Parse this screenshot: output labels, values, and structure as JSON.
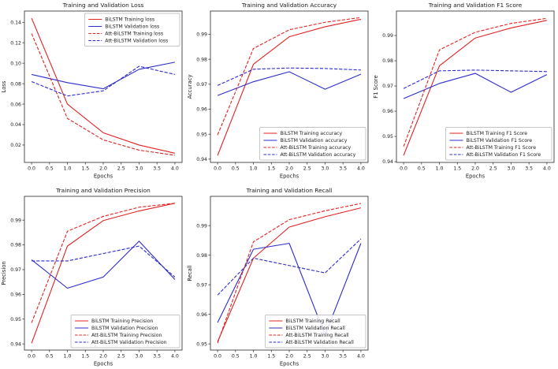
{
  "figure": {
    "background": "#ffffff"
  },
  "colors": {
    "red": "#e02323",
    "blue": "#2c2ccc",
    "axis": "#262626",
    "text": "#1a1a1a",
    "legend_border": "#b3b3b3",
    "legend_bg": "rgba(255,255,255,0.85)"
  },
  "chart_data": [
    {
      "type": "line",
      "title": "Training and Validation Loss",
      "xlabel": "Epochs",
      "ylabel": "Loss",
      "x": [
        0,
        1,
        2,
        3,
        4
      ],
      "xlim": [
        -0.2,
        4.2
      ],
      "ylim": [
        0.003,
        0.151
      ],
      "xticks": [
        0.0,
        0.5,
        1.0,
        1.5,
        2.0,
        2.5,
        3.0,
        3.5,
        4.0
      ],
      "yticks": [
        0.02,
        0.04,
        0.06,
        0.08,
        0.1,
        0.12,
        0.14
      ],
      "grid": false,
      "legend_position": "upper right",
      "series": [
        {
          "name": "BiLSTM Training loss",
          "color": "red",
          "style": "solid",
          "values": [
            0.144,
            0.06,
            0.032,
            0.02,
            0.012
          ]
        },
        {
          "name": "BiLSTM Validation loss",
          "color": "blue",
          "style": "solid",
          "values": [
            0.089,
            0.081,
            0.075,
            0.094,
            0.101
          ]
        },
        {
          "name": "Att-BiLSTM Training loss",
          "color": "red",
          "style": "dashed",
          "values": [
            0.129,
            0.046,
            0.025,
            0.015,
            0.01
          ]
        },
        {
          "name": "Att-BiLSTM Validation loss",
          "color": "blue",
          "style": "dashed",
          "values": [
            0.082,
            0.068,
            0.073,
            0.097,
            0.089
          ]
        }
      ]
    },
    {
      "type": "line",
      "title": "Training and Validation Accuracy",
      "xlabel": "Epochs",
      "ylabel": "Accuracy",
      "x": [
        0,
        1,
        2,
        3,
        4
      ],
      "xlim": [
        -0.2,
        4.2
      ],
      "ylim": [
        0.9387,
        0.9993
      ],
      "xticks": [
        0.0,
        0.5,
        1.0,
        1.5,
        2.0,
        2.5,
        3.0,
        3.5,
        4.0
      ],
      "yticks": [
        0.94,
        0.95,
        0.96,
        0.97,
        0.98,
        0.99
      ],
      "grid": false,
      "legend_position": "lower right",
      "series": [
        {
          "name": "BiLSTM Training accuracy",
          "color": "red",
          "style": "solid",
          "values": [
            0.9415,
            0.978,
            0.989,
            0.993,
            0.996
          ]
        },
        {
          "name": "BiLSTM Validation accuracy",
          "color": "blue",
          "style": "solid",
          "values": [
            0.9655,
            0.971,
            0.975,
            0.968,
            0.974
          ]
        },
        {
          "name": "Att-BiLSTM Training accuracy",
          "color": "red",
          "style": "dashed",
          "values": [
            0.9497,
            0.9843,
            0.9918,
            0.9948,
            0.9967
          ]
        },
        {
          "name": "Att-BiLSTM Validation accuracy",
          "color": "blue",
          "style": "dashed",
          "values": [
            0.9695,
            0.976,
            0.9765,
            0.9763,
            0.9757
          ]
        }
      ]
    },
    {
      "type": "line",
      "title": "Training and Validation F1 Score",
      "xlabel": "Epochs",
      "ylabel": "F1 Score",
      "x": [
        0,
        1,
        2,
        3,
        4
      ],
      "xlim": [
        -0.2,
        4.2
      ],
      "ylim": [
        0.9397,
        0.9997
      ],
      "xticks": [
        0.0,
        0.5,
        1.0,
        1.5,
        2.0,
        2.5,
        3.0,
        3.5,
        4.0
      ],
      "yticks": [
        0.94,
        0.95,
        0.96,
        0.97,
        0.98,
        0.99
      ],
      "grid": false,
      "legend_position": "lower right",
      "series": [
        {
          "name": "BiLSTM Training F1 Score",
          "color": "red",
          "style": "solid",
          "values": [
            0.9425,
            0.978,
            0.989,
            0.993,
            0.996
          ]
        },
        {
          "name": "BiLSTM Validation F1 Score",
          "color": "blue",
          "style": "solid",
          "values": [
            0.965,
            0.971,
            0.975,
            0.9675,
            0.9745
          ]
        },
        {
          "name": "Att-BiLSTM Training F1 Score",
          "color": "red",
          "style": "dashed",
          "values": [
            0.946,
            0.9843,
            0.9913,
            0.9948,
            0.9968
          ]
        },
        {
          "name": "Att-BiLSTM Validation F1 Score",
          "color": "blue",
          "style": "dashed",
          "values": [
            0.969,
            0.976,
            0.9763,
            0.976,
            0.9757
          ]
        }
      ]
    },
    {
      "type": "line",
      "title": "Training and Validation Precision",
      "xlabel": "Epochs",
      "ylabel": "Precision",
      "x": [
        0,
        1,
        2,
        3,
        4
      ],
      "xlim": [
        -0.2,
        4.2
      ],
      "ylim": [
        0.9375,
        0.9996
      ],
      "xticks": [
        0.0,
        0.5,
        1.0,
        1.5,
        2.0,
        2.5,
        3.0,
        3.5,
        4.0
      ],
      "yticks": [
        0.94,
        0.95,
        0.96,
        0.97,
        0.98,
        0.99
      ],
      "grid": false,
      "legend_position": "lower right",
      "series": [
        {
          "name": "BiLSTM Training Precision",
          "color": "red",
          "style": "solid",
          "values": [
            0.9403,
            0.9795,
            0.9898,
            0.9937,
            0.9968
          ]
        },
        {
          "name": "BiLSTM Validation Precision",
          "color": "blue",
          "style": "solid",
          "values": [
            0.974,
            0.9625,
            0.967,
            0.9815,
            0.966
          ]
        },
        {
          "name": "Att-BiLSTM Training Precision",
          "color": "red",
          "style": "dashed",
          "values": [
            0.9485,
            0.9855,
            0.9915,
            0.9952,
            0.9968
          ]
        },
        {
          "name": "Att-BiLSTM Validation Precision",
          "color": "blue",
          "style": "dashed",
          "values": [
            0.9735,
            0.9735,
            0.9765,
            0.9795,
            0.967
          ]
        }
      ]
    },
    {
      "type": "line",
      "title": "Training and Validation Recall",
      "xlabel": "Epochs",
      "ylabel": "Recall",
      "x": [
        0,
        1,
        2,
        3,
        4
      ],
      "xlim": [
        -0.2,
        4.2
      ],
      "ylim": [
        0.9479,
        0.9999
      ],
      "xticks": [
        0.0,
        0.5,
        1.0,
        1.5,
        2.0,
        2.5,
        3.0,
        3.5,
        4.0
      ],
      "yticks": [
        0.95,
        0.96,
        0.97,
        0.98,
        0.99
      ],
      "grid": false,
      "legend_position": "lower right",
      "series": [
        {
          "name": "BiLSTM Training Recall",
          "color": "red",
          "style": "solid",
          "values": [
            0.9507,
            0.979,
            0.9895,
            0.993,
            0.996
          ]
        },
        {
          "name": "BiLSTM Validation Recall",
          "color": "blue",
          "style": "solid",
          "values": [
            0.9572,
            0.982,
            0.984,
            0.953,
            0.984
          ]
        },
        {
          "name": "Att-BiLSTM Training Recall",
          "color": "red",
          "style": "dashed",
          "values": [
            0.9503,
            0.9845,
            0.992,
            0.995,
            0.9975
          ]
        },
        {
          "name": "Att-BiLSTM Validation Recall",
          "color": "blue",
          "style": "dashed",
          "values": [
            0.9665,
            0.979,
            0.9765,
            0.974,
            0.9855
          ]
        }
      ]
    }
  ]
}
